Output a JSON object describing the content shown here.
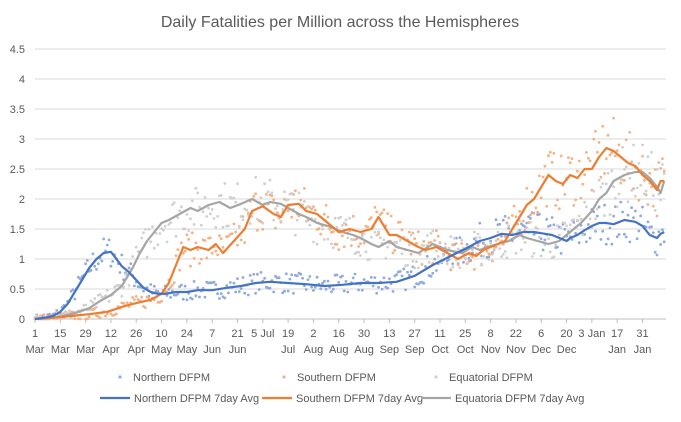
{
  "chart_data": {
    "type": "line",
    "title": "Daily Fatalities per Million across the Hemispheres",
    "xlabel": "",
    "ylabel": "",
    "ylim": [
      0,
      4.5
    ],
    "y_ticks": [
      "0",
      "0.5",
      "1",
      "1.5",
      "2",
      "2.5",
      "3",
      "3.5",
      "4",
      "4.5"
    ],
    "x_ticks": [
      {
        "day": "1",
        "month": "Mar"
      },
      {
        "day": "15",
        "month": "Mar"
      },
      {
        "day": "29",
        "month": "Mar"
      },
      {
        "day": "12",
        "month": "Apr"
      },
      {
        "day": "26",
        "month": "Apr"
      },
      {
        "day": "10",
        "month": "May"
      },
      {
        "day": "24",
        "month": "May"
      },
      {
        "day": "7",
        "month": "Jun"
      },
      {
        "day": "21",
        "month": "Jun"
      },
      {
        "day": "5 Jul",
        "month": ""
      },
      {
        "day": "19",
        "month": "Jul"
      },
      {
        "day": "2",
        "month": "Aug"
      },
      {
        "day": "16",
        "month": "Aug"
      },
      {
        "day": "30",
        "month": "Aug"
      },
      {
        "day": "13",
        "month": "Sep"
      },
      {
        "day": "27",
        "month": "Sep"
      },
      {
        "day": "11",
        "month": "Oct"
      },
      {
        "day": "25",
        "month": "Oct"
      },
      {
        "day": "8",
        "month": "Nov"
      },
      {
        "day": "22",
        "month": "Nov"
      },
      {
        "day": "6",
        "month": "Dec"
      },
      {
        "day": "20",
        "month": "Dec"
      },
      {
        "day": "3 Jan",
        "month": ""
      },
      {
        "day": "17",
        "month": "Jan"
      },
      {
        "day": "31",
        "month": "Jan"
      }
    ],
    "grid": true,
    "legend_position": "bottom",
    "legend": {
      "northern_dfpm": "Northern DFPM",
      "southern_dfpm": "Southern DFPM",
      "equatorial_dfpm": "Equatorial DFPM",
      "northern_avg": "Northern DFPM 7day Avg",
      "southern_avg": "Southern DFPM 7day Avg",
      "equatorial_avg": "Equatoria DFPM 7day Avg"
    },
    "colors": {
      "northern": "#4472c4",
      "southern": "#ed7d31",
      "equatorial": "#a5a5a5",
      "northern_points": "#8faadc",
      "southern_points": "#f4b183",
      "equatorial_points": "#d0d0d0"
    },
    "x_unit": "days since 1 Mar",
    "series": [
      {
        "name": "Northern DFPM 7day Avg",
        "x": [
          0,
          5,
          10,
          14,
          18,
          22,
          26,
          30,
          34,
          38,
          42,
          45,
          48,
          52,
          56,
          60,
          64,
          68,
          72,
          78,
          84,
          90,
          98,
          106,
          114,
          122,
          130,
          140,
          150,
          160,
          170,
          180,
          190,
          200,
          210,
          220,
          230,
          240,
          246,
          252,
          258,
          264,
          270,
          276,
          282,
          286,
          290,
          294,
          296,
          300,
          304,
          308,
          312,
          316,
          320,
          326,
          332,
          336,
          340,
          344,
          346,
          348
        ],
        "values": [
          0,
          0.02,
          0.05,
          0.12,
          0.25,
          0.45,
          0.65,
          0.85,
          1.0,
          1.1,
          1.12,
          1.0,
          0.88,
          0.78,
          0.65,
          0.52,
          0.45,
          0.42,
          0.42,
          0.45,
          0.45,
          0.48,
          0.48,
          0.52,
          0.55,
          0.6,
          0.62,
          0.6,
          0.58,
          0.55,
          0.57,
          0.6,
          0.6,
          0.62,
          0.72,
          0.9,
          1.05,
          1.2,
          1.3,
          1.35,
          1.42,
          1.4,
          1.45,
          1.45,
          1.42,
          1.4,
          1.35,
          1.3,
          1.35,
          1.4,
          1.48,
          1.55,
          1.6,
          1.6,
          1.58,
          1.65,
          1.62,
          1.55,
          1.4,
          1.35,
          1.42,
          1.45
        ]
      },
      {
        "name": "Southern DFPM 7day Avg",
        "x": [
          0,
          10,
          20,
          30,
          40,
          50,
          58,
          64,
          70,
          74,
          78,
          82,
          86,
          90,
          96,
          100,
          104,
          110,
          116,
          120,
          126,
          132,
          136,
          140,
          146,
          150,
          156,
          162,
          168,
          174,
          180,
          186,
          190,
          196,
          200,
          206,
          212,
          216,
          222,
          228,
          234,
          240,
          244,
          248,
          252,
          256,
          260,
          264,
          268,
          272,
          276,
          280,
          284,
          288,
          292,
          296,
          300,
          304,
          308,
          312,
          316,
          320,
          324,
          328,
          332,
          336,
          340,
          344,
          346,
          348
        ],
        "values": [
          0,
          0.02,
          0.05,
          0.08,
          0.12,
          0.22,
          0.28,
          0.32,
          0.42,
          0.6,
          0.9,
          1.2,
          1.15,
          1.2,
          1.15,
          1.25,
          1.1,
          1.3,
          1.5,
          1.8,
          1.88,
          1.75,
          1.7,
          1.9,
          1.92,
          1.8,
          1.75,
          1.6,
          1.45,
          1.5,
          1.45,
          1.5,
          1.7,
          1.4,
          1.4,
          1.3,
          1.2,
          1.15,
          1.2,
          1.1,
          1.0,
          1.1,
          1.05,
          1.15,
          1.2,
          1.25,
          1.3,
          1.5,
          1.7,
          1.9,
          2.0,
          2.2,
          2.4,
          2.3,
          2.25,
          2.4,
          2.35,
          2.5,
          2.5,
          2.7,
          2.85,
          2.8,
          2.7,
          2.6,
          2.55,
          2.4,
          2.3,
          2.15,
          2.3,
          2.3
        ]
      },
      {
        "name": "Equatoria DFPM 7day Avg",
        "x": [
          0,
          10,
          20,
          30,
          36,
          42,
          48,
          54,
          58,
          62,
          66,
          70,
          74,
          80,
          86,
          90,
          96,
          102,
          108,
          114,
          120,
          126,
          130,
          136,
          140,
          146,
          150,
          156,
          162,
          170,
          176,
          180,
          186,
          190,
          196,
          200,
          206,
          212,
          220,
          228,
          236,
          242,
          246,
          250,
          256,
          262,
          268,
          272,
          278,
          284,
          290,
          296,
          302,
          308,
          312,
          316,
          320,
          326,
          332,
          336,
          340,
          344,
          346,
          348
        ],
        "values": [
          0,
          0.02,
          0.08,
          0.18,
          0.3,
          0.4,
          0.55,
          0.85,
          1.1,
          1.3,
          1.45,
          1.6,
          1.65,
          1.75,
          1.85,
          1.8,
          1.9,
          1.95,
          1.85,
          1.92,
          2.0,
          1.9,
          1.95,
          1.92,
          1.85,
          1.75,
          1.7,
          1.6,
          1.55,
          1.45,
          1.4,
          1.35,
          1.25,
          1.2,
          1.3,
          1.2,
          1.15,
          1.1,
          1.25,
          1.15,
          1.1,
          1.2,
          1.15,
          1.2,
          1.25,
          1.3,
          1.4,
          1.35,
          1.3,
          1.25,
          1.3,
          1.45,
          1.6,
          1.8,
          2.0,
          2.1,
          2.3,
          2.4,
          2.45,
          2.45,
          2.35,
          2.2,
          2.1,
          2.3
        ]
      }
    ]
  }
}
